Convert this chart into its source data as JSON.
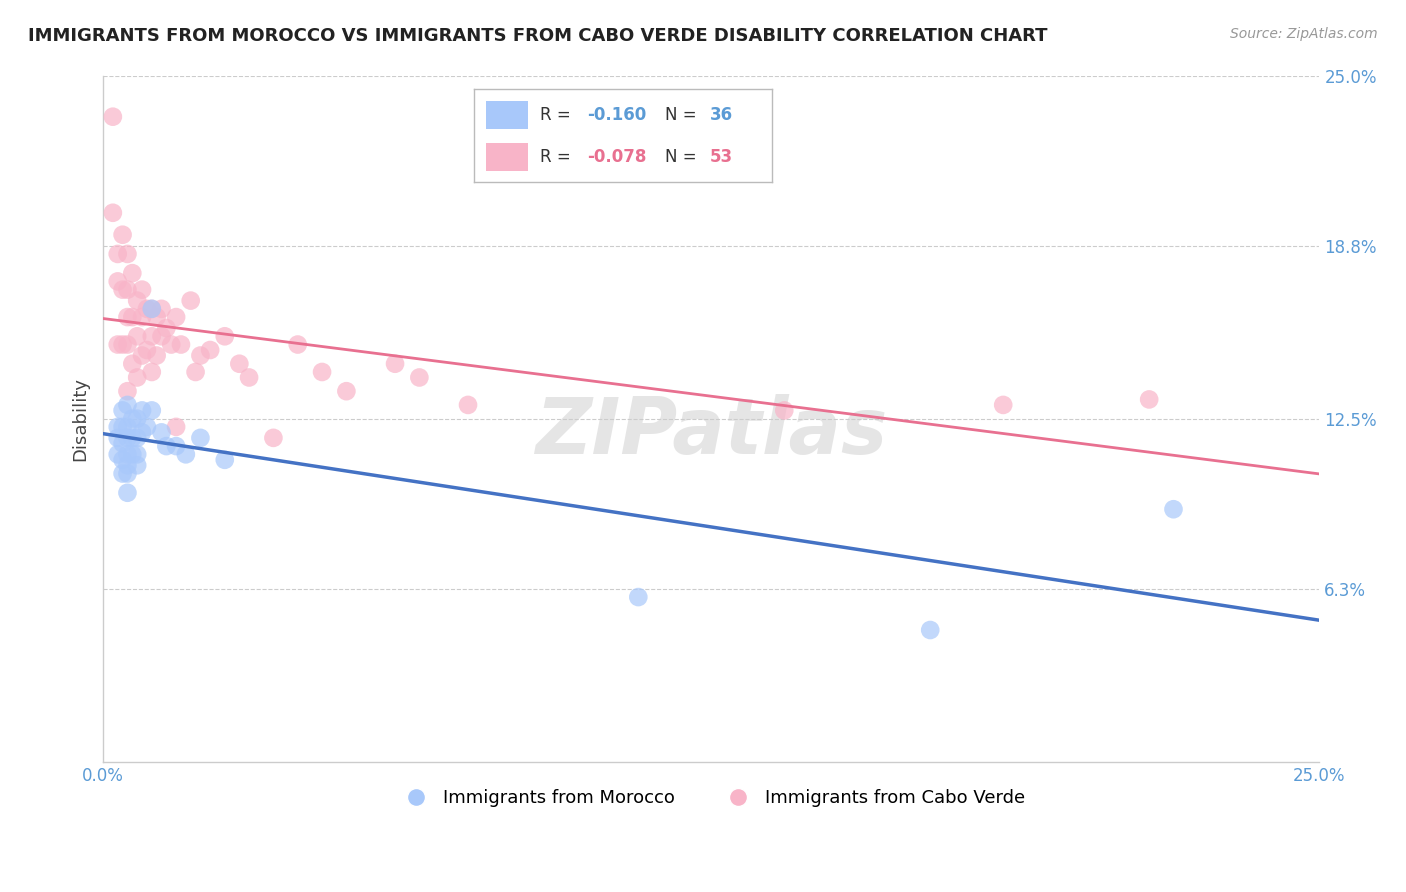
{
  "title": "IMMIGRANTS FROM MOROCCO VS IMMIGRANTS FROM CABO VERDE DISABILITY CORRELATION CHART",
  "source": "Source: ZipAtlas.com",
  "ylabel": "Disability",
  "xlim": [
    0.0,
    0.25
  ],
  "ylim": [
    0.0,
    0.25
  ],
  "xtick_positions": [
    0.0,
    0.25
  ],
  "xtick_labels": [
    "0.0%",
    "25.0%"
  ],
  "ytick_values": [
    0.063,
    0.125,
    0.188,
    0.25
  ],
  "ytick_labels": [
    "6.3%",
    "12.5%",
    "18.8%",
    "25.0%"
  ],
  "legend_r_morocco": "-0.160",
  "legend_n_morocco": "36",
  "legend_r_caboverde": "-0.078",
  "legend_n_caboverde": "53",
  "color_morocco": "#a8c8fa",
  "color_caboverde": "#f8b4c8",
  "line_color_morocco": "#4472c4",
  "line_color_caboverde": "#e87090",
  "watermark": "ZIPatlas",
  "morocco_x": [
    0.003,
    0.003,
    0.003,
    0.004,
    0.004,
    0.004,
    0.004,
    0.004,
    0.005,
    0.005,
    0.005,
    0.005,
    0.005,
    0.005,
    0.005,
    0.006,
    0.006,
    0.006,
    0.007,
    0.007,
    0.007,
    0.007,
    0.008,
    0.008,
    0.009,
    0.01,
    0.01,
    0.012,
    0.013,
    0.015,
    0.017,
    0.02,
    0.025,
    0.11,
    0.17,
    0.22
  ],
  "morocco_y": [
    0.122,
    0.118,
    0.112,
    0.128,
    0.122,
    0.116,
    0.11,
    0.105,
    0.13,
    0.122,
    0.118,
    0.112,
    0.108,
    0.105,
    0.098,
    0.125,
    0.118,
    0.112,
    0.125,
    0.118,
    0.112,
    0.108,
    0.128,
    0.12,
    0.122,
    0.165,
    0.128,
    0.12,
    0.115,
    0.115,
    0.112,
    0.118,
    0.11,
    0.06,
    0.048,
    0.092
  ],
  "caboverde_x": [
    0.002,
    0.002,
    0.003,
    0.003,
    0.003,
    0.004,
    0.004,
    0.004,
    0.005,
    0.005,
    0.005,
    0.005,
    0.005,
    0.006,
    0.006,
    0.006,
    0.007,
    0.007,
    0.007,
    0.008,
    0.008,
    0.008,
    0.009,
    0.009,
    0.01,
    0.01,
    0.01,
    0.011,
    0.011,
    0.012,
    0.012,
    0.013,
    0.014,
    0.015,
    0.015,
    0.016,
    0.018,
    0.019,
    0.02,
    0.022,
    0.025,
    0.028,
    0.03,
    0.035,
    0.04,
    0.045,
    0.05,
    0.06,
    0.065,
    0.075,
    0.14,
    0.185,
    0.215
  ],
  "caboverde_y": [
    0.235,
    0.2,
    0.185,
    0.175,
    0.152,
    0.192,
    0.172,
    0.152,
    0.185,
    0.172,
    0.162,
    0.152,
    0.135,
    0.178,
    0.162,
    0.145,
    0.168,
    0.155,
    0.14,
    0.172,
    0.162,
    0.148,
    0.165,
    0.15,
    0.165,
    0.155,
    0.142,
    0.162,
    0.148,
    0.165,
    0.155,
    0.158,
    0.152,
    0.162,
    0.122,
    0.152,
    0.168,
    0.142,
    0.148,
    0.15,
    0.155,
    0.145,
    0.14,
    0.118,
    0.152,
    0.142,
    0.135,
    0.145,
    0.14,
    0.13,
    0.128,
    0.13,
    0.132
  ]
}
